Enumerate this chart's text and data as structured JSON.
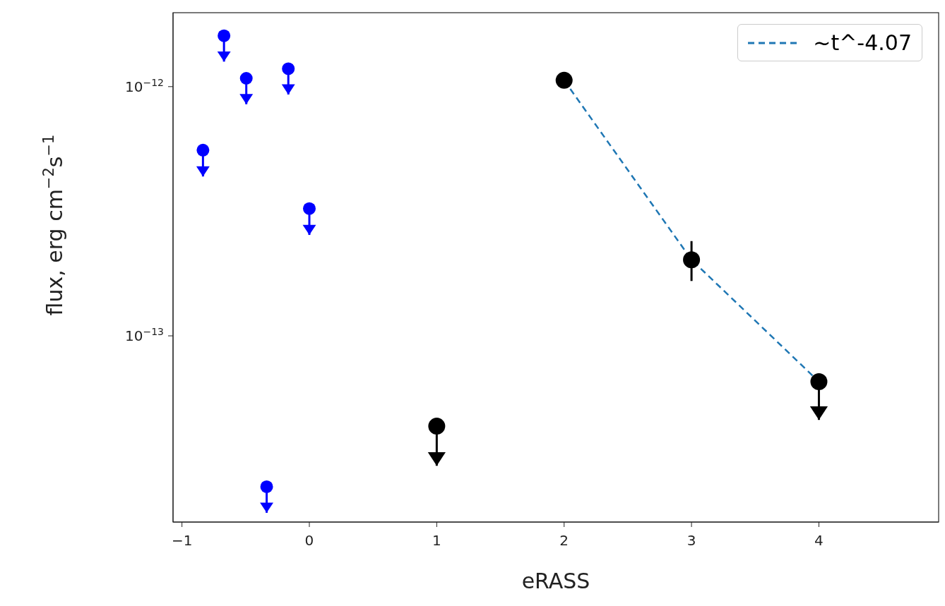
{
  "chart_data": {
    "type": "scatter",
    "xlabel": "eRASS",
    "ylabel": "flux, erg cm$^{−2}$s$^{−1}$",
    "log": "y",
    "grid": false,
    "legend": "top right",
    "marker": "circle",
    "xlim": [
      -1.07,
      4.94
    ],
    "xticks": [
      -1,
      0,
      1,
      2,
      3,
      4
    ],
    "ylim": [
      1.79e-14,
      1.98e-12
    ],
    "yticks": [
      {
        "value": 1e-13,
        "label": "10$^{−13}$"
      },
      {
        "value": 1e-12,
        "label": "10$^{−12}$"
      }
    ],
    "series": [
      {
        "type": "scatter",
        "color": "#0000ff",
        "x": [
          -0.835,
          -0.67,
          -0.495,
          -0.335,
          -0.165,
          0
        ],
        "values": [
          5.56e-13,
          1.6e-12,
          1.08e-12,
          2.48e-14,
          1.18e-12,
          3.24e-13
        ],
        "errors": [
          [
            4.36e-13,
            5.56e-13
          ],
          [
            1.26e-12,
            1.6e-12
          ],
          [
            8.5e-13,
            1.08e-12
          ],
          [
            1.95e-14,
            2.48e-14
          ],
          [
            9.3e-13,
            1.18e-12
          ],
          [
            2.54e-13,
            3.24e-13
          ]
        ]
      },
      {
        "type": "scatter",
        "color": "#000000",
        "x": [
          1,
          2,
          3,
          4
        ],
        "values": [
          4.34e-14,
          1.06e-12,
          2.02e-13,
          6.55e-14
        ],
        "errors": [
          [
            3.01e-14,
            4.34e-14
          ],
          null,
          [
            1.66e-13,
            2.4e-13
          ],
          [
            4.6e-14,
            6.55e-14
          ]
        ]
      },
      {
        "type": "line",
        "name": "~t^-4.07",
        "color": "#1f77b4",
        "line_style": "dashed",
        "marker": "none",
        "x": [
          2,
          3,
          4
        ],
        "values": [
          1.06e-12,
          2.02e-13,
          6.55e-14
        ]
      }
    ]
  }
}
